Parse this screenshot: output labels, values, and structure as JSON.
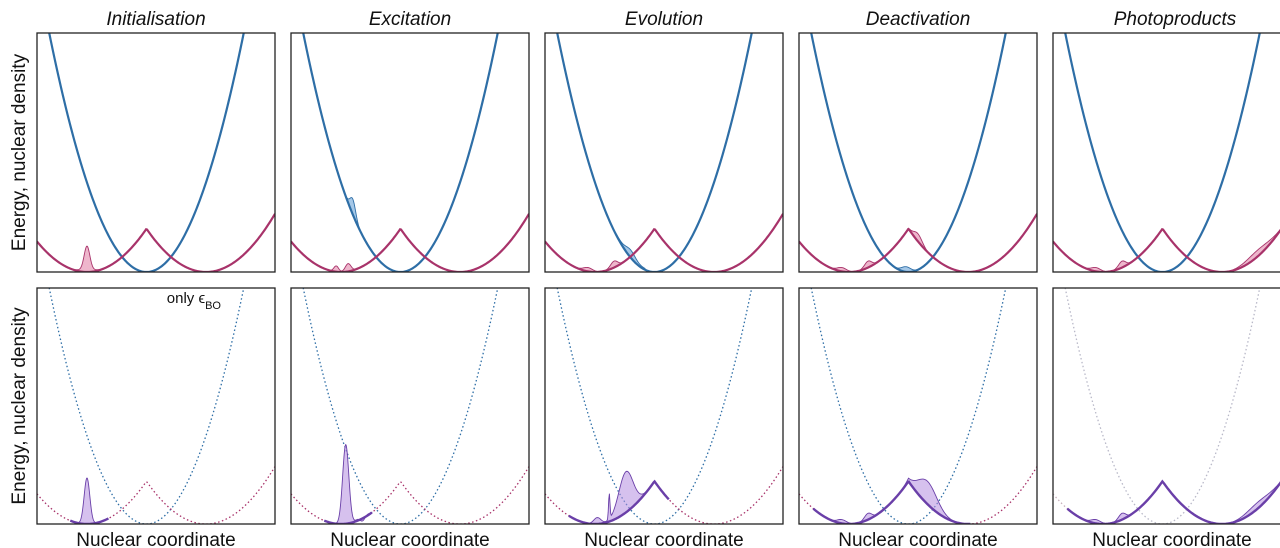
{
  "chart_data": {
    "type": "line",
    "column_titles": [
      "Initialisation",
      "Excitation",
      "Evolution",
      "Deactivation",
      "Photoproducts"
    ],
    "ylabel": "Energy, nuclear density",
    "xlabel": "Nuclear coordinate",
    "rows": [
      {
        "row": "top",
        "annotation": ""
      },
      {
        "row": "bottom",
        "annotation": "only ϵ",
        "annotation_sub": "BO"
      }
    ],
    "colors": {
      "upper_state": "#2e6ea6",
      "lower_state": "#a8336a",
      "upper_density": "#5b9bd5",
      "lower_density": "#e07aa2",
      "exact_density": "#6a3fa8",
      "exact_fill": "#b48ee0"
    }
  }
}
